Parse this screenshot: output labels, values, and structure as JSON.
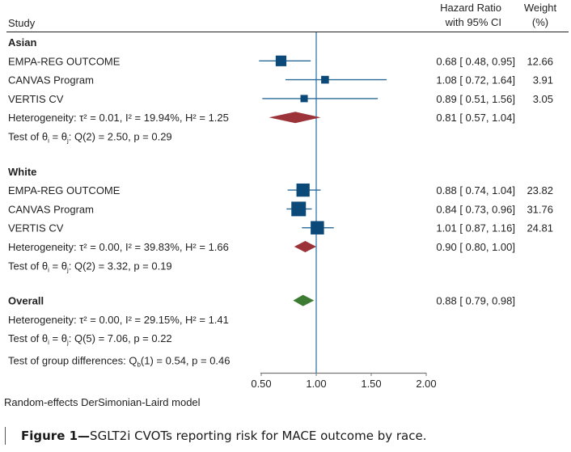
{
  "chart_data": {
    "type": "forest",
    "header": {
      "study": "Study",
      "hr_line1": "Hazard Ratio",
      "hr_line2": "with 95% CI",
      "weight_line1": "Weight",
      "weight_line2": "(%)"
    },
    "xlim": [
      0.5,
      2.0
    ],
    "x_ticks": [
      "0.50",
      "1.00",
      "1.50",
      "2.00"
    ],
    "x_tick_values": [
      0.5,
      1.0,
      1.5,
      2.0
    ],
    "reference_line": 1.0,
    "colors": {
      "study_marker": "#0b4a78",
      "ci_line": "#2a6a98",
      "reference": "#1f6fa8",
      "subgroup_diamond": "#9b3339",
      "overall_diamond": "#3d7a32",
      "axis": "#777777"
    },
    "rows": [
      {
        "kind": "group",
        "label": "Asian"
      },
      {
        "kind": "study",
        "label": "EMPA-REG OUTCOME",
        "hr": 0.68,
        "lo": 0.48,
        "hi": 0.95,
        "ci_text": "0.68 [ 0.48,  0.95]",
        "weight": 12.66,
        "weight_text": "12.66"
      },
      {
        "kind": "study",
        "label": "CANVAS Program",
        "hr": 1.08,
        "lo": 0.72,
        "hi": 1.64,
        "ci_text": "1.08 [ 0.72,  1.64]",
        "weight": 3.91,
        "weight_text": "3.91"
      },
      {
        "kind": "study",
        "label": "VERTIS CV",
        "hr": 0.89,
        "lo": 0.51,
        "hi": 1.56,
        "ci_text": "0.89 [ 0.51,  1.56]",
        "weight": 3.05,
        "weight_text": "3.05"
      },
      {
        "kind": "subgroup",
        "label": "Heterogeneity: τ² = 0.01, I² = 19.94%, H² = 1.25",
        "hr": 0.81,
        "lo": 0.57,
        "hi": 1.04,
        "ci_text": "0.81 [ 0.57,  1.04]"
      },
      {
        "kind": "note",
        "label": "Test of θᵢ = θⱼ: Q(2) = 2.50, p = 0.29"
      },
      {
        "kind": "spacer"
      },
      {
        "kind": "group",
        "label": "White"
      },
      {
        "kind": "study",
        "label": "EMPA-REG OUTCOME",
        "hr": 0.88,
        "lo": 0.74,
        "hi": 1.04,
        "ci_text": "0.88 [ 0.74,  1.04]",
        "weight": 23.82,
        "weight_text": "23.82"
      },
      {
        "kind": "study",
        "label": "CANVAS Program",
        "hr": 0.84,
        "lo": 0.73,
        "hi": 0.96,
        "ci_text": "0.84 [ 0.73,  0.96]",
        "weight": 31.76,
        "weight_text": "31.76"
      },
      {
        "kind": "study",
        "label": "VERTIS CV",
        "hr": 1.01,
        "lo": 0.87,
        "hi": 1.16,
        "ci_text": "1.01 [ 0.87,  1.16]",
        "weight": 24.81,
        "weight_text": "24.81"
      },
      {
        "kind": "subgroup",
        "label": "Heterogeneity: τ² = 0.00, I² = 39.83%, H² = 1.66",
        "hr": 0.9,
        "lo": 0.8,
        "hi": 1.0,
        "ci_text": "0.90 [ 0.80,  1.00]"
      },
      {
        "kind": "note",
        "label": "Test of θᵢ = θⱼ: Q(2) = 3.32, p = 0.19"
      },
      {
        "kind": "spacer"
      },
      {
        "kind": "overall",
        "label": "Overall",
        "hr": 0.88,
        "lo": 0.79,
        "hi": 0.98,
        "ci_text": "0.88 [ 0.79,  0.98]"
      },
      {
        "kind": "note",
        "label": "Heterogeneity: τ² = 0.00, I² = 29.15%, H² = 1.41"
      },
      {
        "kind": "note",
        "label": "Test of θᵢ = θⱼ: Q(5) = 7.06, p = 0.22"
      },
      {
        "kind": "note2",
        "label": "Test of group differences: Q_b(1) = 0.54, p = 0.46"
      }
    ],
    "footnote": "Random-effects DerSimonian-Laird model"
  },
  "caption": {
    "label": "Figure 1—",
    "text": "SGLT2i CVOTs reporting risk for MACE outcome by race."
  }
}
